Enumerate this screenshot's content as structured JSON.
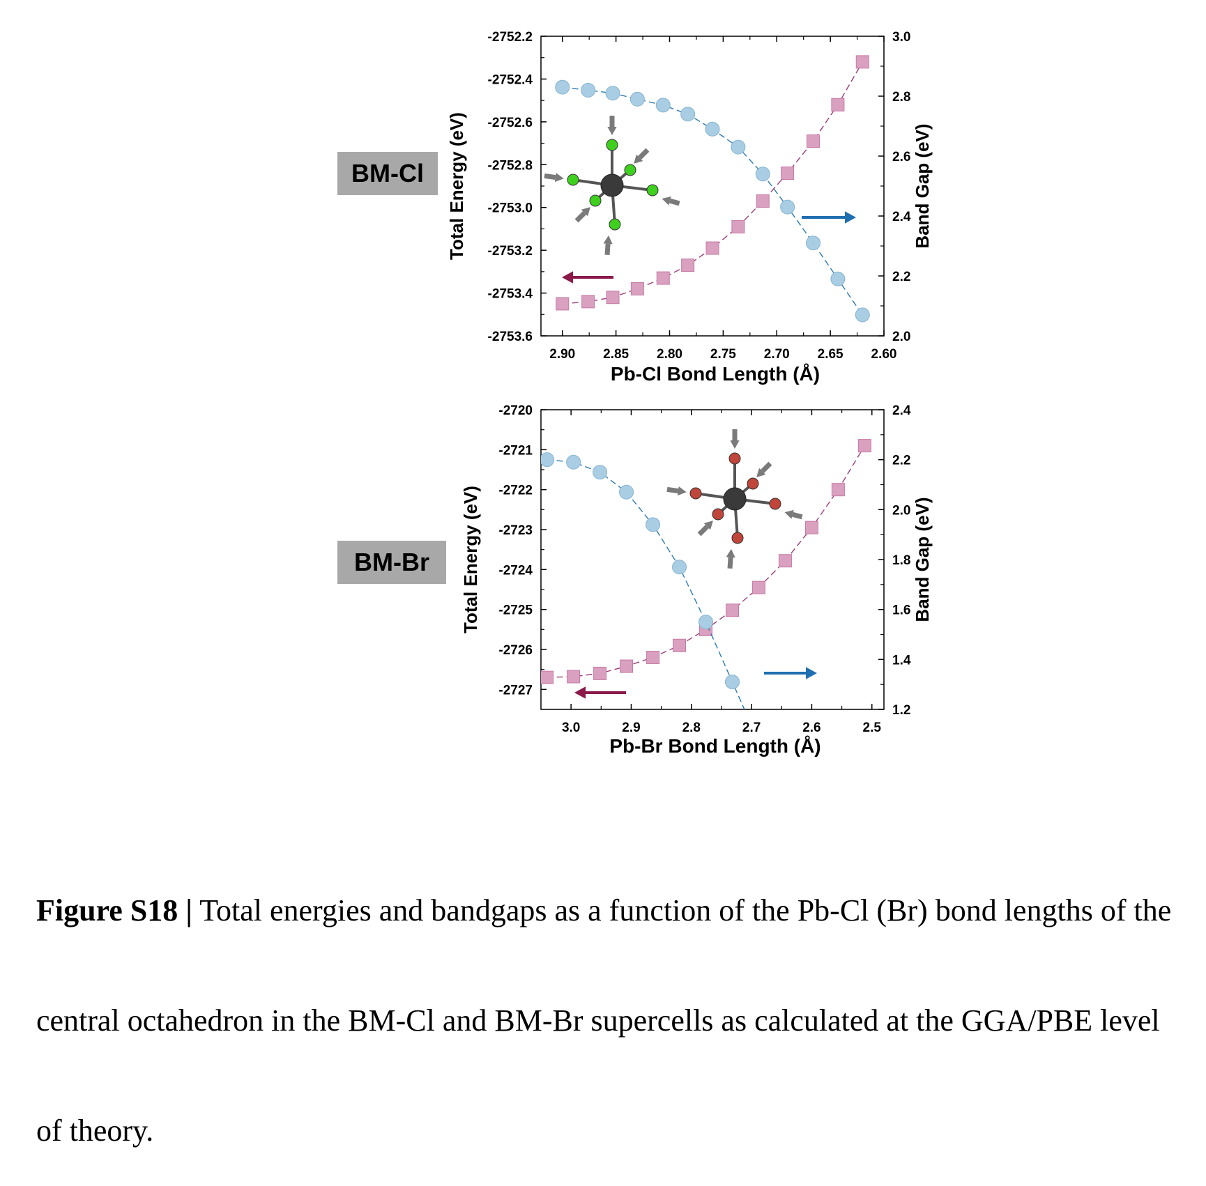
{
  "panels": [
    {
      "label": "BM-Cl"
    },
    {
      "label": "BM-Br"
    }
  ],
  "caption": {
    "label": "Figure S18 |",
    "text": " Total energies and bandgaps as a function of the Pb-Cl (Br) bond lengths of the central octahedron in the BM-Cl and BM-Br supercells as calculated at the GGA/PBE level of theory."
  },
  "colors": {
    "energy_series": "#d9a0c0",
    "bandgap_series": "#a9cde3",
    "left_arrow": "#8b1a4b",
    "right_arrow": "#1f6fb0",
    "chlorine_atom": "#3ecf1f",
    "bromine_atom": "#c0453a",
    "lead_atom": "#3a3a3a",
    "compression_arrow": "#7a7a7a"
  },
  "chart_data": [
    {
      "type": "scatter",
      "panel": "BM-Cl",
      "xlabel": "Pb-Cl Bond Length (Å)",
      "ylabel": "Total Energy (eV)",
      "y2label": "Band Gap (eV)",
      "xlim": [
        2.6,
        2.92
      ],
      "x_reversed": true,
      "ylim": [
        -2753.6,
        -2752.2
      ],
      "y2lim": [
        2.0,
        3.0
      ],
      "xticks": [
        "2.90",
        "2.85",
        "2.80",
        "2.75",
        "2.70",
        "2.65",
        "2.60"
      ],
      "yticks": [
        "-2752.2",
        "-2752.4",
        "-2752.6",
        "-2752.8",
        "-2753.0",
        "-2753.2",
        "-2753.4",
        "-2753.6"
      ],
      "y2ticks": [
        "3.0",
        "2.8",
        "2.6",
        "2.4",
        "2.2",
        "2.0"
      ],
      "series": [
        {
          "axis": "left",
          "marker": "square",
          "x": [
            2.9,
            2.876,
            2.853,
            2.83,
            2.806,
            2.783,
            2.76,
            2.736,
            2.713,
            2.69,
            2.666,
            2.643,
            2.62
          ],
          "y": [
            -2753.45,
            -2753.44,
            -2753.42,
            -2753.38,
            -2753.33,
            -2753.27,
            -2753.19,
            -2753.09,
            -2752.97,
            -2752.84,
            -2752.69,
            -2752.52,
            -2752.32
          ]
        },
        {
          "axis": "right",
          "marker": "circle",
          "x": [
            2.9,
            2.876,
            2.853,
            2.83,
            2.806,
            2.783,
            2.76,
            2.736,
            2.713,
            2.69,
            2.666,
            2.643,
            2.62
          ],
          "y": [
            2.83,
            2.82,
            2.81,
            2.79,
            2.77,
            2.74,
            2.69,
            2.63,
            2.54,
            2.43,
            2.31,
            2.19,
            2.07
          ]
        }
      ]
    },
    {
      "type": "scatter",
      "panel": "BM-Br",
      "xlabel": "Pb-Br Bond Length (Å)",
      "ylabel": "Total Energy (eV)",
      "y2label": "Band Gap (eV)",
      "xlim": [
        2.48,
        3.05
      ],
      "x_reversed": true,
      "ylim": [
        -2727.5,
        -2720
      ],
      "y2lim": [
        1.2,
        2.4
      ],
      "xticks": [
        "3.0",
        "2.9",
        "2.8",
        "2.7",
        "2.6",
        "2.5"
      ],
      "yticks": [
        "-2720",
        "-2721",
        "-2722",
        "-2723",
        "-2724",
        "-2725",
        "-2726",
        "-2727"
      ],
      "y2ticks": [
        "2.4",
        "2.2",
        "2.0",
        "1.8",
        "1.6",
        "1.4",
        "1.2"
      ],
      "series": [
        {
          "axis": "left",
          "marker": "square",
          "x": [
            3.04,
            2.996,
            2.952,
            2.908,
            2.864,
            2.82,
            2.776,
            2.732,
            2.688,
            2.644,
            2.6,
            2.556,
            2.512
          ],
          "y": [
            -2726.7,
            -2726.68,
            -2726.6,
            -2726.42,
            -2726.2,
            -2725.9,
            -2725.5,
            -2725.02,
            -2724.45,
            -2723.78,
            -2722.95,
            -2722.0,
            -2720.9
          ]
        },
        {
          "axis": "right",
          "marker": "circle",
          "x": [
            3.04,
            2.996,
            2.952,
            2.908,
            2.864,
            2.82,
            2.776,
            2.732
          ],
          "y": [
            2.2,
            2.19,
            2.15,
            2.07,
            1.94,
            1.77,
            1.55,
            1.31
          ]
        }
      ]
    }
  ]
}
